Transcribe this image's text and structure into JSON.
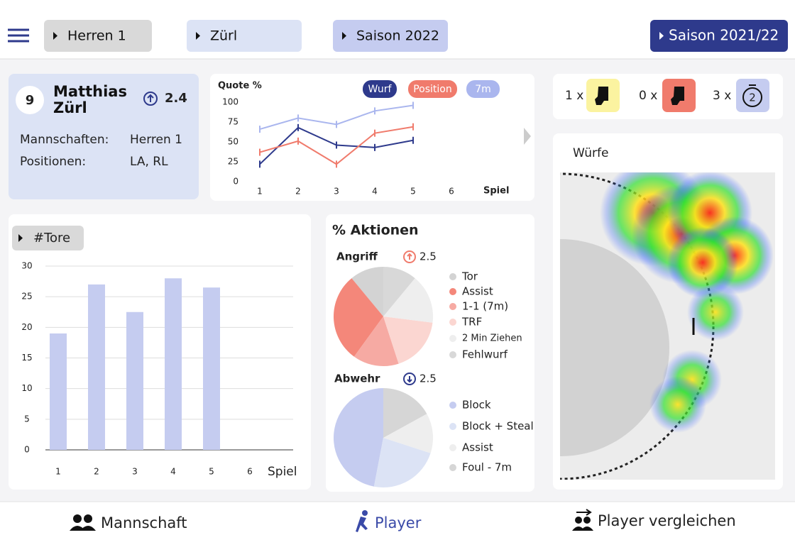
{
  "header": {
    "buttons": [
      "Herren 1",
      "Zürl",
      "Saison 2022",
      "Saison 2021/22"
    ]
  },
  "player": {
    "number": 9,
    "name": "Matthias Zürl",
    "rating": 2.4,
    "rows": [
      {
        "label": "Mannschaften:",
        "value": "Herren 1"
      },
      {
        "label": "Positionen:",
        "value": "LA, RL"
      }
    ]
  },
  "quote_chart": {
    "type": "line",
    "y_label": "Quote %",
    "x_label": "Spiel",
    "categories": [
      1,
      2,
      3,
      4,
      5,
      6
    ],
    "series": [
      {
        "name": "Wurf",
        "color": "#2e3a8c",
        "values": [
          22,
          68,
          46,
          43,
          52,
          null
        ]
      },
      {
        "name": "Position",
        "color": "#f07b6c",
        "values": [
          37,
          51,
          22,
          61,
          69,
          null
        ]
      },
      {
        "name": "7m",
        "color": "#aab6ee",
        "values": [
          66,
          80,
          72,
          89,
          96,
          null
        ]
      }
    ],
    "ylim": [
      0,
      100
    ],
    "yticks": [
      0,
      25,
      50,
      75,
      100
    ],
    "grid": false
  },
  "tore_chart": {
    "type": "bar",
    "title": "#Tore",
    "x_label": "Spiel",
    "categories": [
      1,
      2,
      3,
      4,
      5,
      6
    ],
    "values": [
      19,
      27,
      22.5,
      28,
      26.5,
      null
    ],
    "color": "#c5ccf0",
    "ylim": [
      0,
      30
    ],
    "yticks": [
      0,
      5,
      10,
      15,
      20,
      25,
      30
    ],
    "grid": true
  },
  "aktionen": {
    "title": "% Aktionen",
    "charts": [
      {
        "type": "pie",
        "title": "Angriff",
        "trend": "up",
        "rating": 2.5,
        "categories": [
          "Tor",
          "Assist",
          "1-1 (7m)",
          "TRF",
          "2 Min Ziehen",
          "Fehlwurf"
        ],
        "values": [
          11,
          29,
          15,
          18,
          16,
          11
        ],
        "colors": [
          "#d3d3d3",
          "#f4877a",
          "#f6aaa3",
          "#fbd6d1",
          "#eeeeee",
          "#d8d8d8"
        ]
      },
      {
        "type": "pie",
        "title": "Abwehr",
        "trend": "down",
        "rating": 2.5,
        "categories": [
          "Block",
          "Block + Steal",
          "Assist",
          "Foul - 7m"
        ],
        "values": [
          47,
          23,
          13,
          17
        ],
        "colors": [
          "#c5ccf0",
          "#dce3f5",
          "#eeeeee",
          "#d6d6d6"
        ]
      }
    ]
  },
  "cards": [
    {
      "count": "1 x"
    },
    {
      "count": "0 x"
    },
    {
      "count": "3 x",
      "timer": 2
    }
  ],
  "heatmap": {
    "title": "Würfe"
  },
  "nav": [
    "Mannschaft",
    "Player",
    "Player vergleichen"
  ]
}
